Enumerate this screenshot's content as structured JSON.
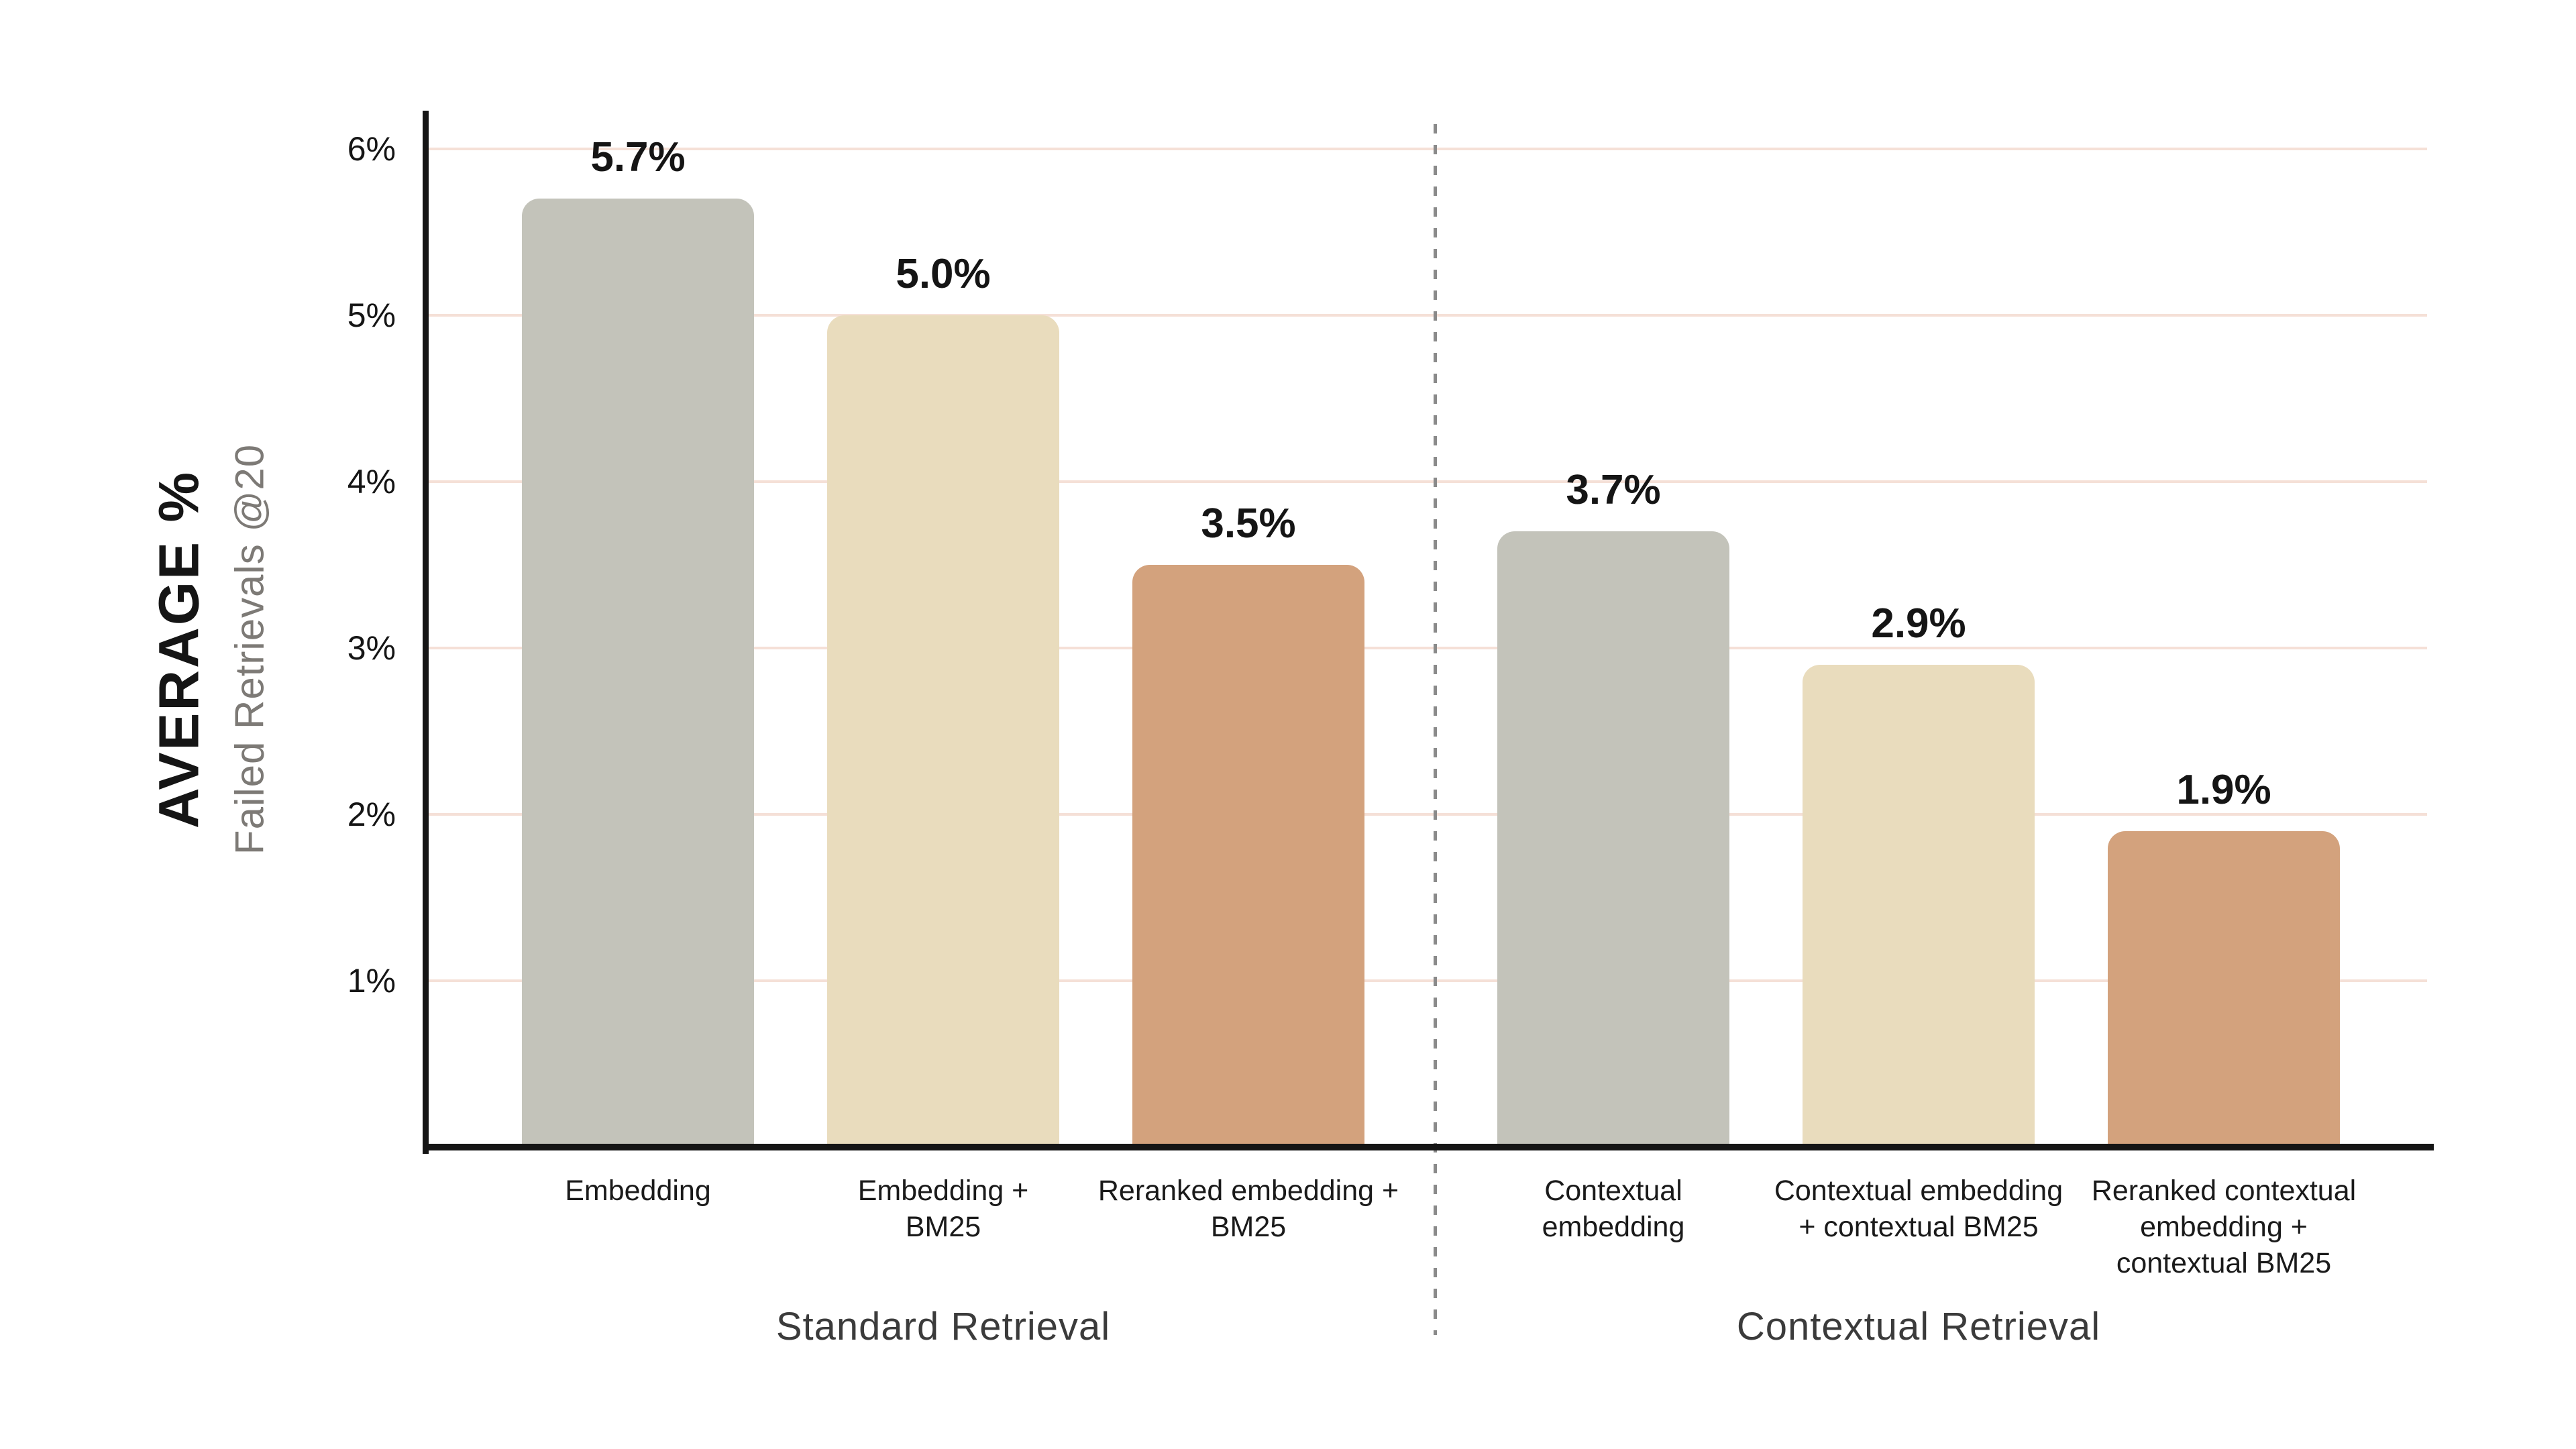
{
  "chart_data": {
    "type": "bar",
    "title": "",
    "y_axis": {
      "label_primary": "AVERAGE %",
      "label_secondary": "Failed Retrievals @20",
      "ticks": [
        {
          "label": "6%",
          "value": 6
        },
        {
          "label": "5%",
          "value": 5
        },
        {
          "label": "4%",
          "value": 4
        },
        {
          "label": "3%",
          "value": 3
        },
        {
          "label": "2%",
          "value": 2
        },
        {
          "label": "1%",
          "value": 1
        }
      ],
      "ylim": [
        0,
        6.5
      ],
      "grid": true,
      "unit": "percent"
    },
    "bars": [
      {
        "category_lines": [
          "Embedding"
        ],
        "value": 5.7,
        "label": "5.7%",
        "color": "gray"
      },
      {
        "category_lines": [
          "Embedding +",
          "BM25"
        ],
        "value": 5.0,
        "label": "5.0%",
        "color": "cream"
      },
      {
        "category_lines": [
          "Reranked embedding +",
          "BM25"
        ],
        "value": 3.5,
        "label": "3.5%",
        "color": "terracotta"
      },
      {
        "category_lines": [
          "Contextual",
          "embedding"
        ],
        "value": 3.7,
        "label": "3.7%",
        "color": "gray"
      },
      {
        "category_lines": [
          "Contextual embedding",
          "+ contextual BM25"
        ],
        "value": 2.9,
        "label": "2.9%",
        "color": "cream"
      },
      {
        "category_lines": [
          "Reranked contextual",
          "embedding +",
          "contextual BM25"
        ],
        "value": 1.9,
        "label": "1.9%",
        "color": "terracotta"
      }
    ],
    "groups": [
      {
        "label": "Standard Retrieval",
        "bar_indexes": [
          0,
          1,
          2
        ]
      },
      {
        "label": "Contextual Retrieval",
        "bar_indexes": [
          3,
          4,
          5
        ]
      }
    ],
    "legend_position": "none",
    "colors": {
      "gray": "#c3c3ba",
      "cream": "#e9dcbd",
      "terracotta": "#d3a27d",
      "gridline": "#f5e0d7",
      "axis": "#151515",
      "divider": "#8a8a8a",
      "value_label": "#151515",
      "tick_label": "#151515",
      "category_label": "#1a1a1a",
      "group_label": "#3b3b3b",
      "y_title_primary": "#151515",
      "y_title_secondary": "#7d7a76",
      "background": "#ffffff"
    }
  }
}
